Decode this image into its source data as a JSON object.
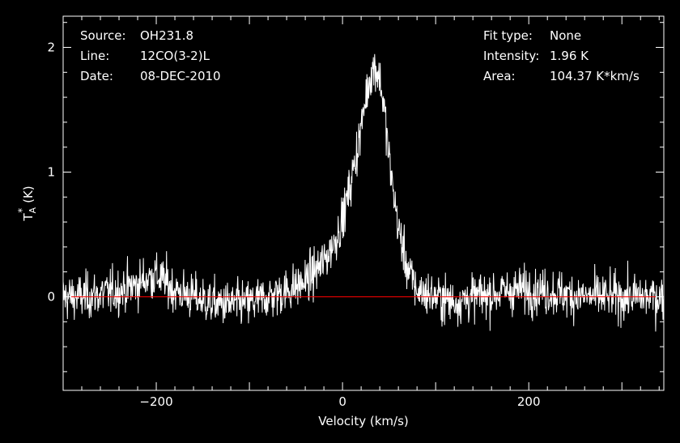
{
  "header": {
    "left": [
      {
        "label": "Source:",
        "value": "OH231.8"
      },
      {
        "label": "Line:",
        "value": "12CO(3-2)L"
      },
      {
        "label": "Date:",
        "value": "08-DEC-2010"
      }
    ],
    "right": [
      {
        "label": "Fit type:",
        "value": "None"
      },
      {
        "label": "Intensity:",
        "value": "1.96 K"
      },
      {
        "label": "Area:",
        "value": "104.37 K*km/s"
      }
    ]
  },
  "chart_data": {
    "type": "line",
    "xlabel": "Velocity (km/s)",
    "ylabel_main": "T",
    "ylabel_sup": "*",
    "ylabel_sub": "A",
    "ylabel_unit": "(K)",
    "xlim": [
      -300,
      345
    ],
    "ylim": [
      -0.75,
      2.25
    ],
    "x_ticks": [
      -200,
      0,
      200
    ],
    "x_tick_labels": [
      "−200",
      "0",
      "200"
    ],
    "y_ticks": [
      0,
      1,
      2
    ],
    "y_tick_labels": [
      "0",
      "1",
      "2"
    ],
    "baseline": 0,
    "colors": {
      "spectrum": "#ffffff",
      "baseline": "#ff0000",
      "frame": "#ffffff",
      "background": "#000000"
    },
    "series": [
      {
        "x": [
          -300,
          -280,
          -260,
          -240,
          -220,
          -210,
          -200,
          -190,
          -180,
          -160,
          -140,
          -120,
          -100,
          -80,
          -60,
          -40,
          -20,
          -10,
          0,
          10,
          20,
          25,
          30,
          35,
          40,
          45,
          50,
          60,
          70,
          80,
          100,
          120,
          140,
          160,
          180,
          200,
          220,
          240,
          260,
          280,
          300,
          320,
          345
        ],
        "values": [
          0.0,
          0.0,
          0.02,
          0.05,
          0.1,
          0.15,
          0.17,
          0.12,
          0.05,
          0.0,
          -0.05,
          -0.06,
          -0.05,
          0.0,
          0.05,
          0.12,
          0.28,
          0.42,
          0.62,
          0.95,
          1.35,
          1.6,
          1.78,
          1.85,
          1.75,
          1.5,
          1.1,
          0.55,
          0.22,
          0.05,
          0.0,
          -0.04,
          0.0,
          0.02,
          0.05,
          0.06,
          0.04,
          0.02,
          0.0,
          0.0,
          0.0,
          0.0,
          0.0
        ]
      }
    ]
  }
}
